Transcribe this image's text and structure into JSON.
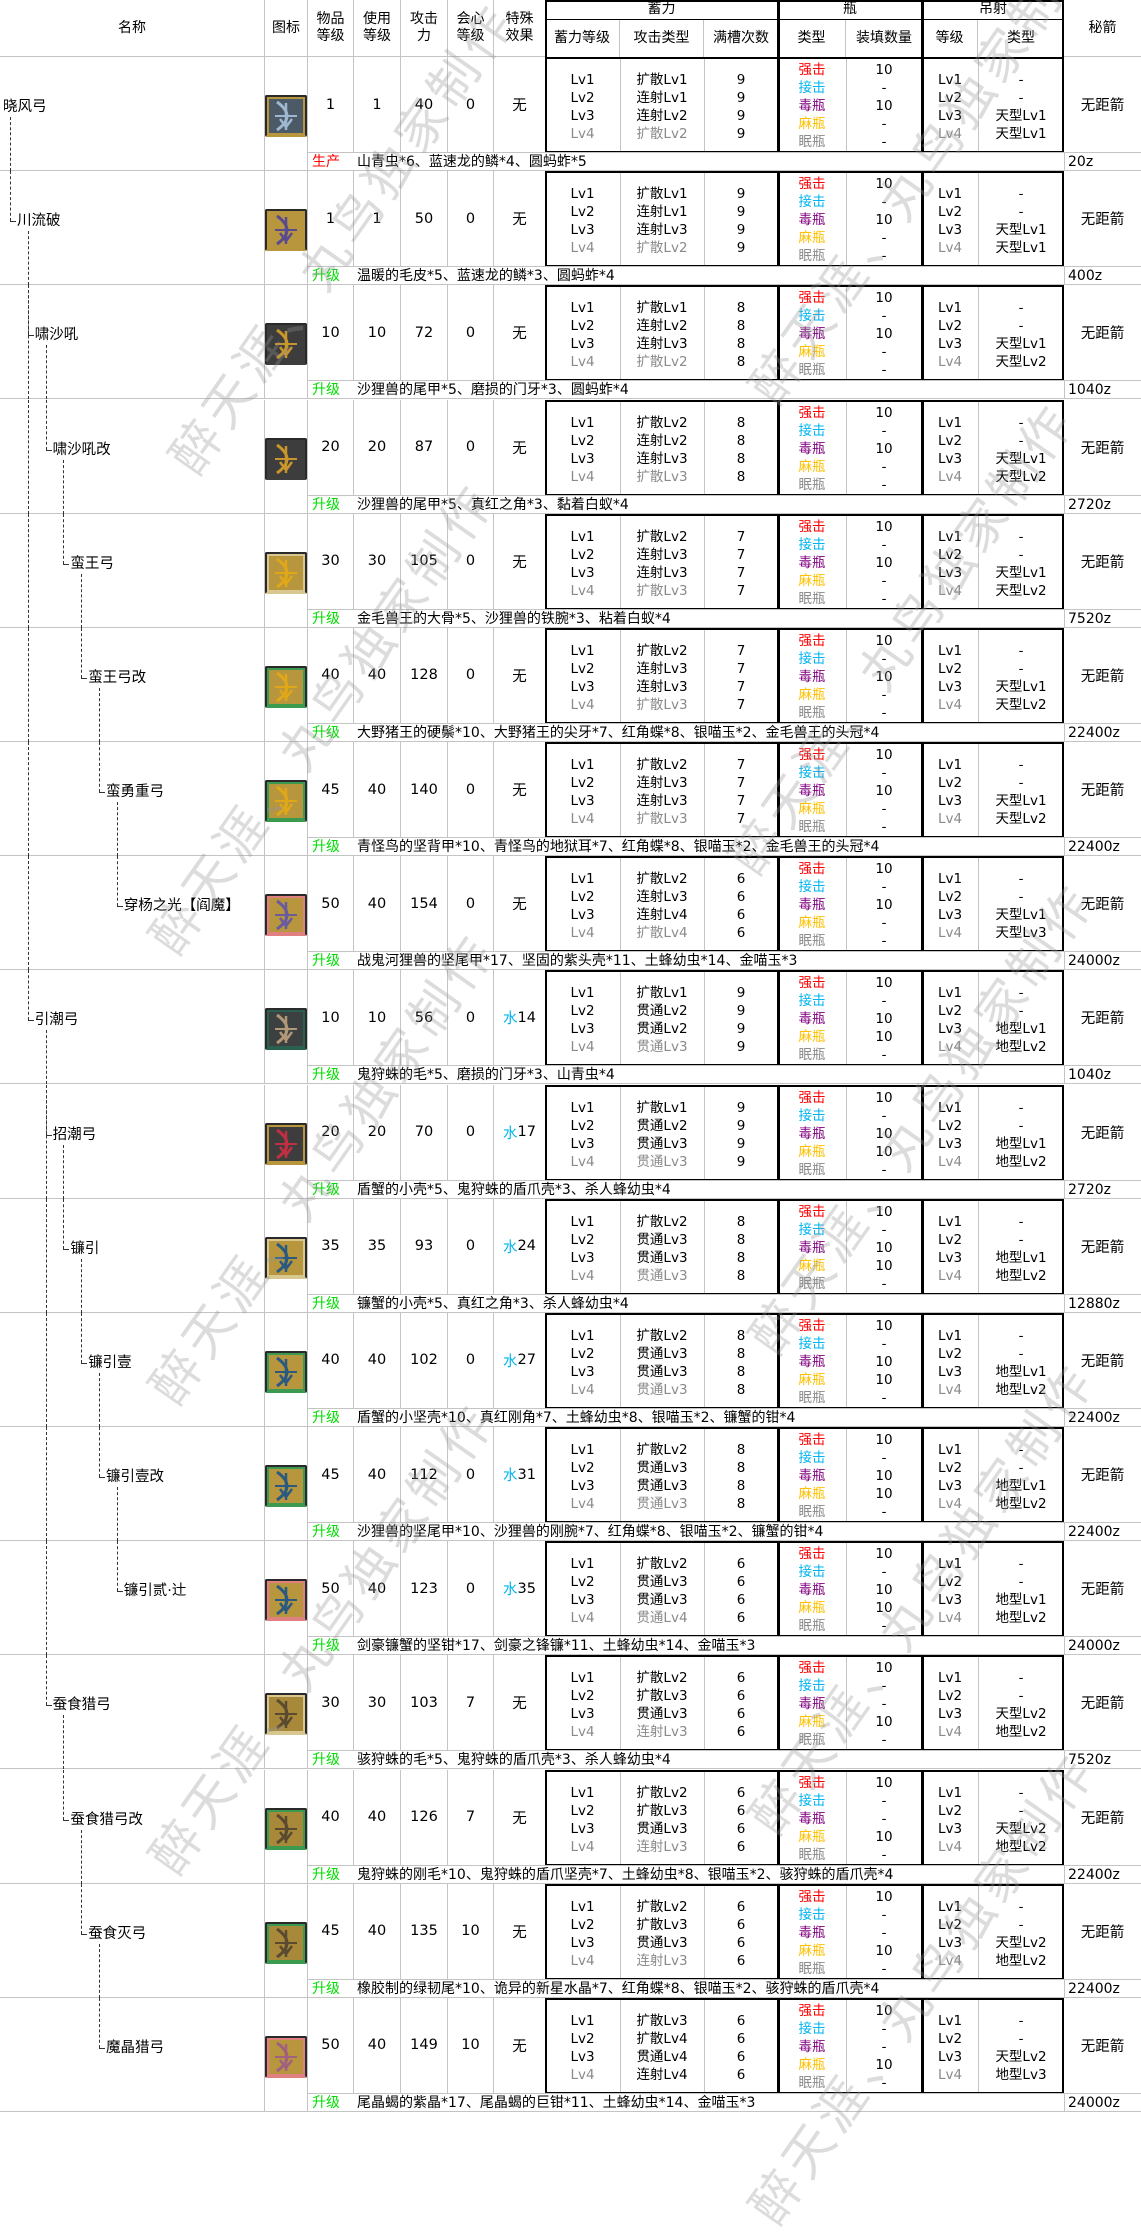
{
  "watermark": "醉天涯、丸鸟独家制作",
  "header": {
    "name": "名称",
    "icon": "图标",
    "rarity": "物品\n等级",
    "use_level": "使用\n等级",
    "attack": "攻击\n力",
    "affinity": "会心\n等级",
    "special": "特殊\n效果",
    "charge": "蓄力",
    "charge_level": "蓄力等级",
    "attack_type": "攻击类型",
    "full_count": "满槽次数",
    "bottle": "瓶",
    "bottle_type": "类型",
    "bottle_load": "装填数量",
    "arc": "吊射",
    "arc_level": "等级",
    "arc_type": "类型",
    "secret": "秘箭"
  },
  "levels": [
    "Lv1",
    "Lv2",
    "Lv3",
    "Lv4"
  ],
  "bottles": [
    {
      "label": "强击",
      "color": "#ff0000"
    },
    {
      "label": "接击",
      "color": "#00b4f0"
    },
    {
      "label": "毒瓶",
      "color": "#800080"
    },
    {
      "label": "麻瓶",
      "color": "#ffc000"
    },
    {
      "label": "眠瓶",
      "color": "#8a8a8a"
    }
  ],
  "colors": {
    "upgrade": "#00dd00",
    "produce": "#ff0000",
    "water": "#00b4f0",
    "grid": "#c4c4c4",
    "lv4": "#8a8a8a"
  },
  "weapons": [
    {
      "name": "晓风弓",
      "depth": 0,
      "icon": {
        "bg": "#4b5a66",
        "glyph": "#9fb8d0",
        "accent": "#b8963e"
      },
      "rarity": "1",
      "use_level": "1",
      "attack": "40",
      "affinity": "0",
      "special": "无",
      "special_element": "",
      "charge_types": [
        "扩散Lv1",
        "连射Lv1",
        "连射Lv2",
        "扩散Lv2"
      ],
      "charge_counts": [
        "9",
        "9",
        "9",
        "9"
      ],
      "bottle_loads": [
        "10",
        "-",
        "10",
        "-",
        "-"
      ],
      "arc_types": [
        "-",
        "-",
        "天型Lv1",
        "天型Lv1"
      ],
      "secret": "无距箭",
      "material_kind": "生产",
      "materials": "山青虫*6、蓝速龙的鳞*4、圆蚂蚱*5",
      "cost": "20z"
    },
    {
      "name": "川流破",
      "depth": 1,
      "icon": {
        "bg": "#b8963e",
        "glyph": "#5a4a90",
        "accent": "#b8963e"
      },
      "rarity": "1",
      "use_level": "1",
      "attack": "50",
      "affinity": "0",
      "special": "无",
      "special_element": "",
      "charge_types": [
        "扩散Lv1",
        "连射Lv1",
        "连射Lv3",
        "扩散Lv2"
      ],
      "charge_counts": [
        "9",
        "9",
        "9",
        "9"
      ],
      "bottle_loads": [
        "10",
        "-",
        "10",
        "-",
        "-"
      ],
      "arc_types": [
        "-",
        "-",
        "天型Lv1",
        "天型Lv1"
      ],
      "secret": "无距箭",
      "material_kind": "升级",
      "materials": "温暖的毛皮*5、蓝速龙的鳞*3、圆蚂蚱*4",
      "cost": "400z"
    },
    {
      "name": "啸沙吼",
      "depth": 2,
      "icon": {
        "bg": "#3d3d3d",
        "glyph": "#c8962a",
        "accent": "#3d3d3d"
      },
      "rarity": "10",
      "use_level": "10",
      "attack": "72",
      "affinity": "0",
      "special": "无",
      "special_element": "",
      "charge_types": [
        "扩散Lv1",
        "连射Lv2",
        "连射Lv3",
        "扩散Lv2"
      ],
      "charge_counts": [
        "8",
        "8",
        "8",
        "8"
      ],
      "bottle_loads": [
        "10",
        "-",
        "10",
        "-",
        "-"
      ],
      "arc_types": [
        "-",
        "-",
        "天型Lv1",
        "天型Lv2"
      ],
      "secret": "无距箭",
      "material_kind": "升级",
      "materials": "沙狸兽的尾甲*5、磨损的门牙*3、圆蚂蚱*4",
      "cost": "1040z"
    },
    {
      "name": "啸沙吼改",
      "depth": 3,
      "icon": {
        "bg": "#3d3d3d",
        "glyph": "#c8962a",
        "accent": "#3d3d3d"
      },
      "rarity": "20",
      "use_level": "20",
      "attack": "87",
      "affinity": "0",
      "special": "无",
      "special_element": "",
      "charge_types": [
        "扩散Lv2",
        "连射Lv2",
        "连射Lv3",
        "扩散Lv3"
      ],
      "charge_counts": [
        "8",
        "8",
        "8",
        "8"
      ],
      "bottle_loads": [
        "10",
        "-",
        "10",
        "-",
        "-"
      ],
      "arc_types": [
        "-",
        "-",
        "天型Lv1",
        "天型Lv2"
      ],
      "secret": "无距箭",
      "material_kind": "升级",
      "materials": "沙狸兽的尾甲*5、真红之角*3、黏着白蚁*4",
      "cost": "2720z"
    },
    {
      "name": "蛮王弓",
      "depth": 4,
      "icon": {
        "bg": "#b8963e",
        "glyph": "#e0a818",
        "accent": "#d8c890"
      },
      "rarity": "30",
      "use_level": "30",
      "attack": "105",
      "affinity": "0",
      "special": "无",
      "special_element": "",
      "charge_types": [
        "扩散Lv2",
        "连射Lv3",
        "连射Lv3",
        "扩散Lv3"
      ],
      "charge_counts": [
        "7",
        "7",
        "7",
        "7"
      ],
      "bottle_loads": [
        "10",
        "-",
        "10",
        "-",
        "-"
      ],
      "arc_types": [
        "-",
        "-",
        "天型Lv1",
        "天型Lv2"
      ],
      "secret": "无距箭",
      "material_kind": "升级",
      "materials": "金毛兽王的大骨*5、沙狸兽的铁腕*3、粘着白蚁*4",
      "cost": "7520z"
    },
    {
      "name": "蛮王弓改",
      "depth": 5,
      "icon": {
        "bg": "#b8963e",
        "glyph": "#e0a818",
        "accent": "#3c9a50"
      },
      "rarity": "40",
      "use_level": "40",
      "attack": "128",
      "affinity": "0",
      "special": "无",
      "special_element": "",
      "charge_types": [
        "扩散Lv2",
        "连射Lv3",
        "连射Lv3",
        "扩散Lv3"
      ],
      "charge_counts": [
        "7",
        "7",
        "7",
        "7"
      ],
      "bottle_loads": [
        "10",
        "-",
        "10",
        "-",
        "-"
      ],
      "arc_types": [
        "-",
        "-",
        "天型Lv1",
        "天型Lv2"
      ],
      "secret": "无距箭",
      "material_kind": "升级",
      "materials": "大野猪王的硬鬃*10、大野猪王的尖牙*7、红角蝶*8、银喵玉*2、金毛兽王的头冠*4",
      "cost": "22400z"
    },
    {
      "name": "蛮勇重弓",
      "depth": 6,
      "icon": {
        "bg": "#b8963e",
        "glyph": "#e0a818",
        "accent": "#3c9a50"
      },
      "rarity": "45",
      "use_level": "40",
      "attack": "140",
      "affinity": "0",
      "special": "无",
      "special_element": "",
      "charge_types": [
        "扩散Lv2",
        "连射Lv3",
        "连射Lv3",
        "扩散Lv3"
      ],
      "charge_counts": [
        "7",
        "7",
        "7",
        "7"
      ],
      "bottle_loads": [
        "10",
        "-",
        "10",
        "-",
        "-"
      ],
      "arc_types": [
        "-",
        "-",
        "天型Lv1",
        "天型Lv2"
      ],
      "secret": "无距箭",
      "material_kind": "升级",
      "materials": "青怪鸟的坚背甲*10、青怪鸟的地狱耳*7、红角蝶*8、银喵玉*2、金毛兽王的头冠*4",
      "cost": "22400z"
    },
    {
      "name": "穿杨之光【阎魔】",
      "depth": 7,
      "icon": {
        "bg": "#b8963e",
        "glyph": "#6a5aa0",
        "accent": "#e08080"
      },
      "rarity": "50",
      "use_level": "40",
      "attack": "154",
      "affinity": "0",
      "special": "无",
      "special_element": "",
      "charge_types": [
        "扩散Lv2",
        "连射Lv3",
        "连射Lv4",
        "扩散Lv4"
      ],
      "charge_counts": [
        "6",
        "6",
        "6",
        "6"
      ],
      "bottle_loads": [
        "10",
        "-",
        "10",
        "-",
        "-"
      ],
      "arc_types": [
        "-",
        "-",
        "天型Lv1",
        "天型Lv3"
      ],
      "secret": "无距箭",
      "material_kind": "升级",
      "materials": "战鬼河狸兽的坚尾甲*17、坚固的紫头壳*11、土蜂幼虫*14、金喵玉*3",
      "cost": "24000z"
    },
    {
      "name": "引潮弓",
      "depth": 2,
      "icon": {
        "bg": "#3d4040",
        "glyph": "#b09878",
        "accent": "#2a6050"
      },
      "rarity": "10",
      "use_level": "10",
      "attack": "56",
      "affinity": "0",
      "special": "14",
      "special_element": "水",
      "charge_types": [
        "扩散Lv1",
        "贯通Lv2",
        "贯通Lv2",
        "贯通Lv3"
      ],
      "charge_counts": [
        "9",
        "9",
        "9",
        "9"
      ],
      "bottle_loads": [
        "10",
        "-",
        "10",
        "10",
        "-"
      ],
      "arc_types": [
        "-",
        "-",
        "地型Lv1",
        "地型Lv2"
      ],
      "secret": "无距箭",
      "material_kind": "升级",
      "materials": "鬼狩蛛的毛*5、磨损的门牙*3、山青虫*4",
      "cost": "1040z"
    },
    {
      "name": "招潮弓",
      "depth": 3,
      "icon": {
        "bg": "#3d3d3d",
        "glyph": "#c03040",
        "accent": "#b8963e"
      },
      "rarity": "20",
      "use_level": "20",
      "attack": "70",
      "affinity": "0",
      "special": "17",
      "special_element": "水",
      "charge_types": [
        "扩散Lv1",
        "贯通Lv2",
        "贯通Lv3",
        "贯通Lv3"
      ],
      "charge_counts": [
        "9",
        "9",
        "9",
        "9"
      ],
      "bottle_loads": [
        "10",
        "-",
        "10",
        "10",
        "-"
      ],
      "arc_types": [
        "-",
        "-",
        "地型Lv1",
        "地型Lv2"
      ],
      "secret": "无距箭",
      "material_kind": "升级",
      "materials": "盾蟹的小壳*5、鬼狩蛛的盾爪壳*3、杀人蜂幼虫*4",
      "cost": "2720z"
    },
    {
      "name": "镰引",
      "depth": 4,
      "icon": {
        "bg": "#b8963e",
        "glyph": "#2a5a80",
        "accent": "#d8c890"
      },
      "rarity": "35",
      "use_level": "35",
      "attack": "93",
      "affinity": "0",
      "special": "24",
      "special_element": "水",
      "charge_types": [
        "扩散Lv2",
        "贯通Lv3",
        "贯通Lv3",
        "贯通Lv3"
      ],
      "charge_counts": [
        "8",
        "8",
        "8",
        "8"
      ],
      "bottle_loads": [
        "10",
        "-",
        "10",
        "10",
        "-"
      ],
      "arc_types": [
        "-",
        "-",
        "地型Lv1",
        "地型Lv2"
      ],
      "secret": "无距箭",
      "material_kind": "升级",
      "materials": "镰蟹的小壳*5、真红之角*3、杀人蜂幼虫*4",
      "cost": "12880z"
    },
    {
      "name": "镰引壹",
      "depth": 5,
      "icon": {
        "bg": "#b8963e",
        "glyph": "#2a5a80",
        "accent": "#3c9a50"
      },
      "rarity": "40",
      "use_level": "40",
      "attack": "102",
      "affinity": "0",
      "special": "27",
      "special_element": "水",
      "charge_types": [
        "扩散Lv2",
        "贯通Lv3",
        "贯通Lv3",
        "贯通Lv3"
      ],
      "charge_counts": [
        "8",
        "8",
        "8",
        "8"
      ],
      "bottle_loads": [
        "10",
        "-",
        "10",
        "10",
        "-"
      ],
      "arc_types": [
        "-",
        "-",
        "地型Lv1",
        "地型Lv2"
      ],
      "secret": "无距箭",
      "material_kind": "升级",
      "materials": "盾蟹的小坚壳*10、真红刚角*7、土蜂幼虫*8、银喵玉*2、镰蟹的钳*4",
      "cost": "22400z"
    },
    {
      "name": "镰引壹改",
      "depth": 6,
      "icon": {
        "bg": "#b8963e",
        "glyph": "#2a5a80",
        "accent": "#3c9a50"
      },
      "rarity": "45",
      "use_level": "40",
      "attack": "112",
      "affinity": "0",
      "special": "31",
      "special_element": "水",
      "charge_types": [
        "扩散Lv2",
        "贯通Lv3",
        "贯通Lv3",
        "贯通Lv3"
      ],
      "charge_counts": [
        "8",
        "8",
        "8",
        "8"
      ],
      "bottle_loads": [
        "10",
        "-",
        "10",
        "10",
        "-"
      ],
      "arc_types": [
        "-",
        "-",
        "地型Lv1",
        "地型Lv2"
      ],
      "secret": "无距箭",
      "material_kind": "升级",
      "materials": "沙狸兽的坚尾甲*10、沙狸兽的刚腕*7、红角蝶*8、银喵玉*2、镰蟹的钳*4",
      "cost": "22400z"
    },
    {
      "name": "镰引贰·辻",
      "depth": 7,
      "icon": {
        "bg": "#b8963e",
        "glyph": "#2a5a80",
        "accent": "#e08080"
      },
      "rarity": "50",
      "use_level": "40",
      "attack": "123",
      "affinity": "0",
      "special": "35",
      "special_element": "水",
      "charge_types": [
        "扩散Lv2",
        "贯通Lv3",
        "贯通Lv3",
        "贯通Lv4"
      ],
      "charge_counts": [
        "6",
        "6",
        "6",
        "6"
      ],
      "bottle_loads": [
        "10",
        "-",
        "10",
        "10",
        "-"
      ],
      "arc_types": [
        "-",
        "-",
        "地型Lv1",
        "地型Lv2"
      ],
      "secret": "无距箭",
      "material_kind": "升级",
      "materials": "剑豪镰蟹的坚钳*17、剑豪之锋镰*11、土蜂幼虫*14、金喵玉*3",
      "cost": "24000z"
    },
    {
      "name": "蚕食猎弓",
      "depth": 3,
      "icon": {
        "bg": "#a8893a",
        "glyph": "#5a4a30",
        "accent": "#d8c890"
      },
      "rarity": "30",
      "use_level": "30",
      "attack": "103",
      "affinity": "7",
      "special": "无",
      "special_element": "",
      "charge_types": [
        "扩散Lv2",
        "扩散Lv3",
        "贯通Lv3",
        "连射Lv3"
      ],
      "charge_counts": [
        "6",
        "6",
        "6",
        "6"
      ],
      "bottle_loads": [
        "10",
        "-",
        "-",
        "10",
        "-"
      ],
      "arc_types": [
        "-",
        "-",
        "天型Lv2",
        "地型Lv2"
      ],
      "secret": "无距箭",
      "material_kind": "升级",
      "materials": "骇狩蛛的毛*5、鬼狩蛛的盾爪壳*3、杀人蜂幼虫*4",
      "cost": "7520z"
    },
    {
      "name": "蚕食猎弓改",
      "depth": 4,
      "icon": {
        "bg": "#a8893a",
        "glyph": "#5a4a30",
        "accent": "#3c9a50"
      },
      "rarity": "40",
      "use_level": "40",
      "attack": "126",
      "affinity": "7",
      "special": "无",
      "special_element": "",
      "charge_types": [
        "扩散Lv2",
        "扩散Lv3",
        "贯通Lv3",
        "连射Lv3"
      ],
      "charge_counts": [
        "6",
        "6",
        "6",
        "6"
      ],
      "bottle_loads": [
        "10",
        "-",
        "-",
        "10",
        "-"
      ],
      "arc_types": [
        "-",
        "-",
        "天型Lv2",
        "地型Lv2"
      ],
      "secret": "无距箭",
      "material_kind": "升级",
      "materials": "鬼狩蛛的刚毛*10、鬼狩蛛的盾爪坚壳*7、土蜂幼虫*8、银喵玉*2、骇狩蛛的盾爪壳*4",
      "cost": "22400z"
    },
    {
      "name": "蚕食灭弓",
      "depth": 5,
      "icon": {
        "bg": "#a8893a",
        "glyph": "#5a4a30",
        "accent": "#3c9a50"
      },
      "rarity": "45",
      "use_level": "40",
      "attack": "135",
      "affinity": "10",
      "special": "无",
      "special_element": "",
      "charge_types": [
        "扩散Lv2",
        "扩散Lv3",
        "贯通Lv3",
        "连射Lv3"
      ],
      "charge_counts": [
        "6",
        "6",
        "6",
        "6"
      ],
      "bottle_loads": [
        "10",
        "-",
        "-",
        "10",
        "-"
      ],
      "arc_types": [
        "-",
        "-",
        "天型Lv2",
        "地型Lv2"
      ],
      "secret": "无距箭",
      "material_kind": "升级",
      "materials": "橡胶制的绿韧尾*10、诡异的新星水晶*7、红角蝶*8、银喵玉*2、骇狩蛛的盾爪壳*4",
      "cost": "22400z"
    },
    {
      "name": "魔晶猎弓",
      "depth": 6,
      "icon": {
        "bg": "#b8963e",
        "glyph": "#a06080",
        "accent": "#e08080"
      },
      "rarity": "50",
      "use_level": "40",
      "attack": "149",
      "affinity": "10",
      "special": "无",
      "special_element": "",
      "charge_types": [
        "扩散Lv3",
        "扩散Lv4",
        "贯通Lv4",
        "连射Lv4"
      ],
      "charge_counts": [
        "6",
        "6",
        "6",
        "6"
      ],
      "bottle_loads": [
        "10",
        "-",
        "-",
        "10",
        "-"
      ],
      "arc_types": [
        "-",
        "-",
        "天型Lv2",
        "地型Lv3"
      ],
      "secret": "无距箭",
      "material_kind": "升级",
      "materials": "尾晶蝎的紫晶*17、尾晶蝎的巨钳*11、土蜂幼虫*14、金喵玉*3",
      "cost": "24000z"
    }
  ]
}
